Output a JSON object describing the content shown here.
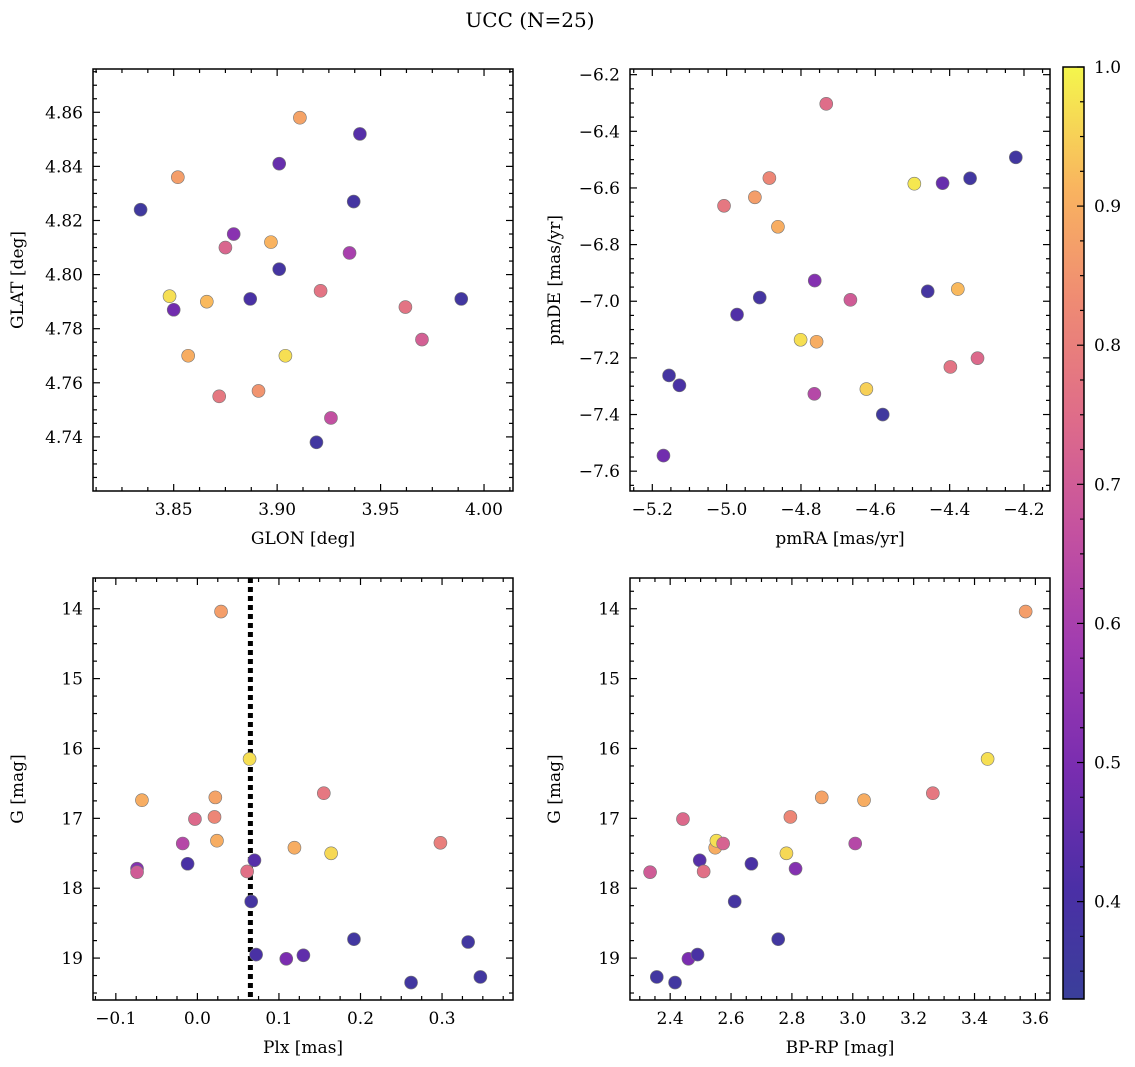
{
  "suptitle": "UCC (N=25)",
  "colorbar": {
    "colormap": "plasma",
    "range": [
      0.33,
      1.0
    ],
    "ticks": [
      0.4,
      0.5,
      0.6,
      0.7,
      0.8,
      0.9,
      1.0
    ],
    "tick_labels": [
      "0.4",
      "0.5",
      "0.6",
      "0.7",
      "0.8",
      "0.9",
      "1.0"
    ]
  },
  "chart_data": [
    {
      "type": "scatter",
      "xlabel": "GLON [deg]",
      "ylabel": "GLAT [deg]",
      "xlim": [
        3.811,
        4.014
      ],
      "ylim": [
        4.72,
        4.876
      ],
      "xticks": [
        3.85,
        3.9,
        3.95,
        4.0
      ],
      "xtick_labels": [
        "3.85",
        "3.90",
        "3.95",
        "4.00"
      ],
      "yticks": [
        4.74,
        4.76,
        4.78,
        4.8,
        4.82,
        4.84,
        4.86
      ],
      "ytick_labels": [
        "4.74",
        "4.76",
        "4.78",
        "4.80",
        "4.82",
        "4.84",
        "4.86"
      ],
      "points": [
        {
          "x": 3.834,
          "y": 4.824,
          "c": 0.36
        },
        {
          "x": 3.848,
          "y": 4.792,
          "c": 0.97
        },
        {
          "x": 3.85,
          "y": 4.787,
          "c": 0.48
        },
        {
          "x": 3.852,
          "y": 4.836,
          "c": 0.87
        },
        {
          "x": 3.857,
          "y": 4.77,
          "c": 0.9
        },
        {
          "x": 3.866,
          "y": 4.79,
          "c": 0.92
        },
        {
          "x": 3.872,
          "y": 4.755,
          "c": 0.78
        },
        {
          "x": 3.875,
          "y": 4.81,
          "c": 0.73
        },
        {
          "x": 3.879,
          "y": 4.815,
          "c": 0.53
        },
        {
          "x": 3.887,
          "y": 4.791,
          "c": 0.4
        },
        {
          "x": 3.891,
          "y": 4.757,
          "c": 0.85
        },
        {
          "x": 3.897,
          "y": 4.812,
          "c": 0.91
        },
        {
          "x": 3.901,
          "y": 4.802,
          "c": 0.38
        },
        {
          "x": 3.901,
          "y": 4.841,
          "c": 0.46
        },
        {
          "x": 3.904,
          "y": 4.77,
          "c": 0.97
        },
        {
          "x": 3.911,
          "y": 4.858,
          "c": 0.88
        },
        {
          "x": 3.919,
          "y": 4.738,
          "c": 0.37
        },
        {
          "x": 3.921,
          "y": 4.794,
          "c": 0.77
        },
        {
          "x": 3.926,
          "y": 4.747,
          "c": 0.66
        },
        {
          "x": 3.935,
          "y": 4.808,
          "c": 0.6
        },
        {
          "x": 3.937,
          "y": 4.827,
          "c": 0.38
        },
        {
          "x": 3.94,
          "y": 4.852,
          "c": 0.43
        },
        {
          "x": 3.962,
          "y": 4.788,
          "c": 0.77
        },
        {
          "x": 3.97,
          "y": 4.776,
          "c": 0.71
        },
        {
          "x": 3.989,
          "y": 4.791,
          "c": 0.37
        }
      ]
    },
    {
      "type": "scatter",
      "xlabel": "pmRA [mas/yr]",
      "ylabel": "pmDE [mas/yr]",
      "xlim": [
        -5.26,
        -4.13
      ],
      "ylim": [
        -7.67,
        -6.18
      ],
      "xticks": [
        -5.2,
        -5.0,
        -4.8,
        -4.6,
        -4.4,
        -4.2
      ],
      "xtick_labels": [
        "−5.2",
        "−5.0",
        "−4.8",
        "−4.6",
        "−4.4",
        "−4.2"
      ],
      "yticks": [
        -7.6,
        -7.4,
        -7.2,
        -7.0,
        -6.8,
        -6.6,
        -6.4,
        -6.2
      ],
      "ytick_labels": [
        "−7.6",
        "−7.4",
        "−7.2",
        "−7.0",
        "−6.8",
        "−6.6",
        "−6.4",
        "−6.2"
      ],
      "points": [
        {
          "x": -5.17,
          "y": -7.545,
          "c": 0.48
        },
        {
          "x": -5.155,
          "y": -7.262,
          "c": 0.38
        },
        {
          "x": -5.127,
          "y": -7.297,
          "c": 0.4
        },
        {
          "x": -5.007,
          "y": -6.663,
          "c": 0.78
        },
        {
          "x": -4.972,
          "y": -7.047,
          "c": 0.42
        },
        {
          "x": -4.924,
          "y": -6.633,
          "c": 0.87
        },
        {
          "x": -4.911,
          "y": -6.987,
          "c": 0.38
        },
        {
          "x": -4.885,
          "y": -6.565,
          "c": 0.82
        },
        {
          "x": -4.862,
          "y": -6.737,
          "c": 0.9
        },
        {
          "x": -4.801,
          "y": -7.136,
          "c": 0.97
        },
        {
          "x": -4.764,
          "y": -7.327,
          "c": 0.63
        },
        {
          "x": -4.763,
          "y": -6.927,
          "c": 0.52
        },
        {
          "x": -4.758,
          "y": -7.143,
          "c": 0.9
        },
        {
          "x": -4.732,
          "y": -6.303,
          "c": 0.75
        },
        {
          "x": -4.667,
          "y": -6.995,
          "c": 0.7
        },
        {
          "x": -4.624,
          "y": -7.31,
          "c": 0.95
        },
        {
          "x": -4.58,
          "y": -7.4,
          "c": 0.36
        },
        {
          "x": -4.495,
          "y": -6.585,
          "c": 0.98
        },
        {
          "x": -4.459,
          "y": -6.965,
          "c": 0.38
        },
        {
          "x": -4.419,
          "y": -6.583,
          "c": 0.46
        },
        {
          "x": -4.398,
          "y": -7.232,
          "c": 0.77
        },
        {
          "x": -4.378,
          "y": -6.957,
          "c": 0.92
        },
        {
          "x": -4.345,
          "y": -6.566,
          "c": 0.37
        },
        {
          "x": -4.325,
          "y": -7.201,
          "c": 0.74
        },
        {
          "x": -4.222,
          "y": -6.492,
          "c": 0.37
        }
      ]
    },
    {
      "type": "scatter",
      "xlabel": "Plx [mas]",
      "ylabel": "G [mag]",
      "xlim": [
        -0.128,
        0.387
      ],
      "ylim": [
        19.6,
        13.56
      ],
      "y_inverted": true,
      "xticks": [
        -0.1,
        0.0,
        0.1,
        0.2,
        0.3
      ],
      "xtick_labels": [
        "−0.1",
        "0.0",
        "0.1",
        "0.2",
        "0.3"
      ],
      "yticks": [
        14,
        15,
        16,
        17,
        18,
        19
      ],
      "ytick_labels": [
        "14",
        "15",
        "16",
        "17",
        "18",
        "19"
      ],
      "vline_x": 0.065,
      "points": [
        {
          "x": -0.074,
          "y": 17.72,
          "c": 0.52
        },
        {
          "x": -0.074,
          "y": 17.77,
          "c": 0.7
        },
        {
          "x": -0.068,
          "y": 16.74,
          "c": 0.9
        },
        {
          "x": -0.018,
          "y": 17.36,
          "c": 0.63
        },
        {
          "x": -0.012,
          "y": 17.65,
          "c": 0.4
        },
        {
          "x": -0.003,
          "y": 17.01,
          "c": 0.74
        },
        {
          "x": 0.021,
          "y": 16.98,
          "c": 0.82
        },
        {
          "x": 0.022,
          "y": 16.7,
          "c": 0.88
        },
        {
          "x": 0.024,
          "y": 17.32,
          "c": 0.9
        },
        {
          "x": 0.029,
          "y": 14.04,
          "c": 0.87
        },
        {
          "x": 0.061,
          "y": 17.76,
          "c": 0.76
        },
        {
          "x": 0.064,
          "y": 16.15,
          "c": 0.97
        },
        {
          "x": 0.066,
          "y": 18.19,
          "c": 0.38
        },
        {
          "x": 0.07,
          "y": 17.6,
          "c": 0.43
        },
        {
          "x": 0.072,
          "y": 18.95,
          "c": 0.4
        },
        {
          "x": 0.109,
          "y": 19.01,
          "c": 0.5
        },
        {
          "x": 0.119,
          "y": 17.42,
          "c": 0.9
        },
        {
          "x": 0.13,
          "y": 18.96,
          "c": 0.45
        },
        {
          "x": 0.155,
          "y": 16.64,
          "c": 0.78
        },
        {
          "x": 0.164,
          "y": 17.5,
          "c": 0.96
        },
        {
          "x": 0.192,
          "y": 18.73,
          "c": 0.37
        },
        {
          "x": 0.262,
          "y": 19.35,
          "c": 0.37
        },
        {
          "x": 0.298,
          "y": 17.35,
          "c": 0.8
        },
        {
          "x": 0.332,
          "y": 18.77,
          "c": 0.37
        },
        {
          "x": 0.347,
          "y": 19.27,
          "c": 0.37
        }
      ]
    },
    {
      "type": "scatter",
      "xlabel": "BP-RP [mag]",
      "ylabel": "G [mag]",
      "xlim": [
        2.268,
        3.648
      ],
      "ylim": [
        19.6,
        13.56
      ],
      "y_inverted": true,
      "xticks": [
        2.4,
        2.6,
        2.8,
        3.0,
        3.2,
        3.4,
        3.6
      ],
      "xtick_labels": [
        "2.4",
        "2.6",
        "2.8",
        "3.0",
        "3.2",
        "3.4",
        "3.6"
      ],
      "yticks": [
        14,
        15,
        16,
        17,
        18,
        19
      ],
      "ytick_labels": [
        "14",
        "15",
        "16",
        "17",
        "18",
        "19"
      ],
      "points": [
        {
          "x": 2.334,
          "y": 17.77,
          "c": 0.7
        },
        {
          "x": 2.356,
          "y": 19.27,
          "c": 0.37
        },
        {
          "x": 2.416,
          "y": 19.35,
          "c": 0.37
        },
        {
          "x": 2.442,
          "y": 17.01,
          "c": 0.74
        },
        {
          "x": 2.46,
          "y": 19.01,
          "c": 0.5
        },
        {
          "x": 2.49,
          "y": 18.95,
          "c": 0.4
        },
        {
          "x": 2.497,
          "y": 17.6,
          "c": 0.43
        },
        {
          "x": 2.51,
          "y": 17.76,
          "c": 0.76
        },
        {
          "x": 2.548,
          "y": 17.42,
          "c": 0.9
        },
        {
          "x": 2.552,
          "y": 17.32,
          "c": 0.97
        },
        {
          "x": 2.574,
          "y": 17.36,
          "c": 0.72
        },
        {
          "x": 2.612,
          "y": 18.19,
          "c": 0.38
        },
        {
          "x": 2.667,
          "y": 17.65,
          "c": 0.4
        },
        {
          "x": 2.755,
          "y": 18.73,
          "c": 0.37
        },
        {
          "x": 2.782,
          "y": 17.5,
          "c": 0.96
        },
        {
          "x": 2.795,
          "y": 16.98,
          "c": 0.82
        },
        {
          "x": 2.812,
          "y": 17.72,
          "c": 0.52
        },
        {
          "x": 2.898,
          "y": 16.7,
          "c": 0.88
        },
        {
          "x": 3.008,
          "y": 17.36,
          "c": 0.63
        },
        {
          "x": 3.037,
          "y": 16.74,
          "c": 0.9
        },
        {
          "x": 3.263,
          "y": 16.64,
          "c": 0.78
        },
        {
          "x": 3.443,
          "y": 16.15,
          "c": 0.97
        },
        {
          "x": 3.568,
          "y": 14.04,
          "c": 0.87
        }
      ]
    }
  ]
}
